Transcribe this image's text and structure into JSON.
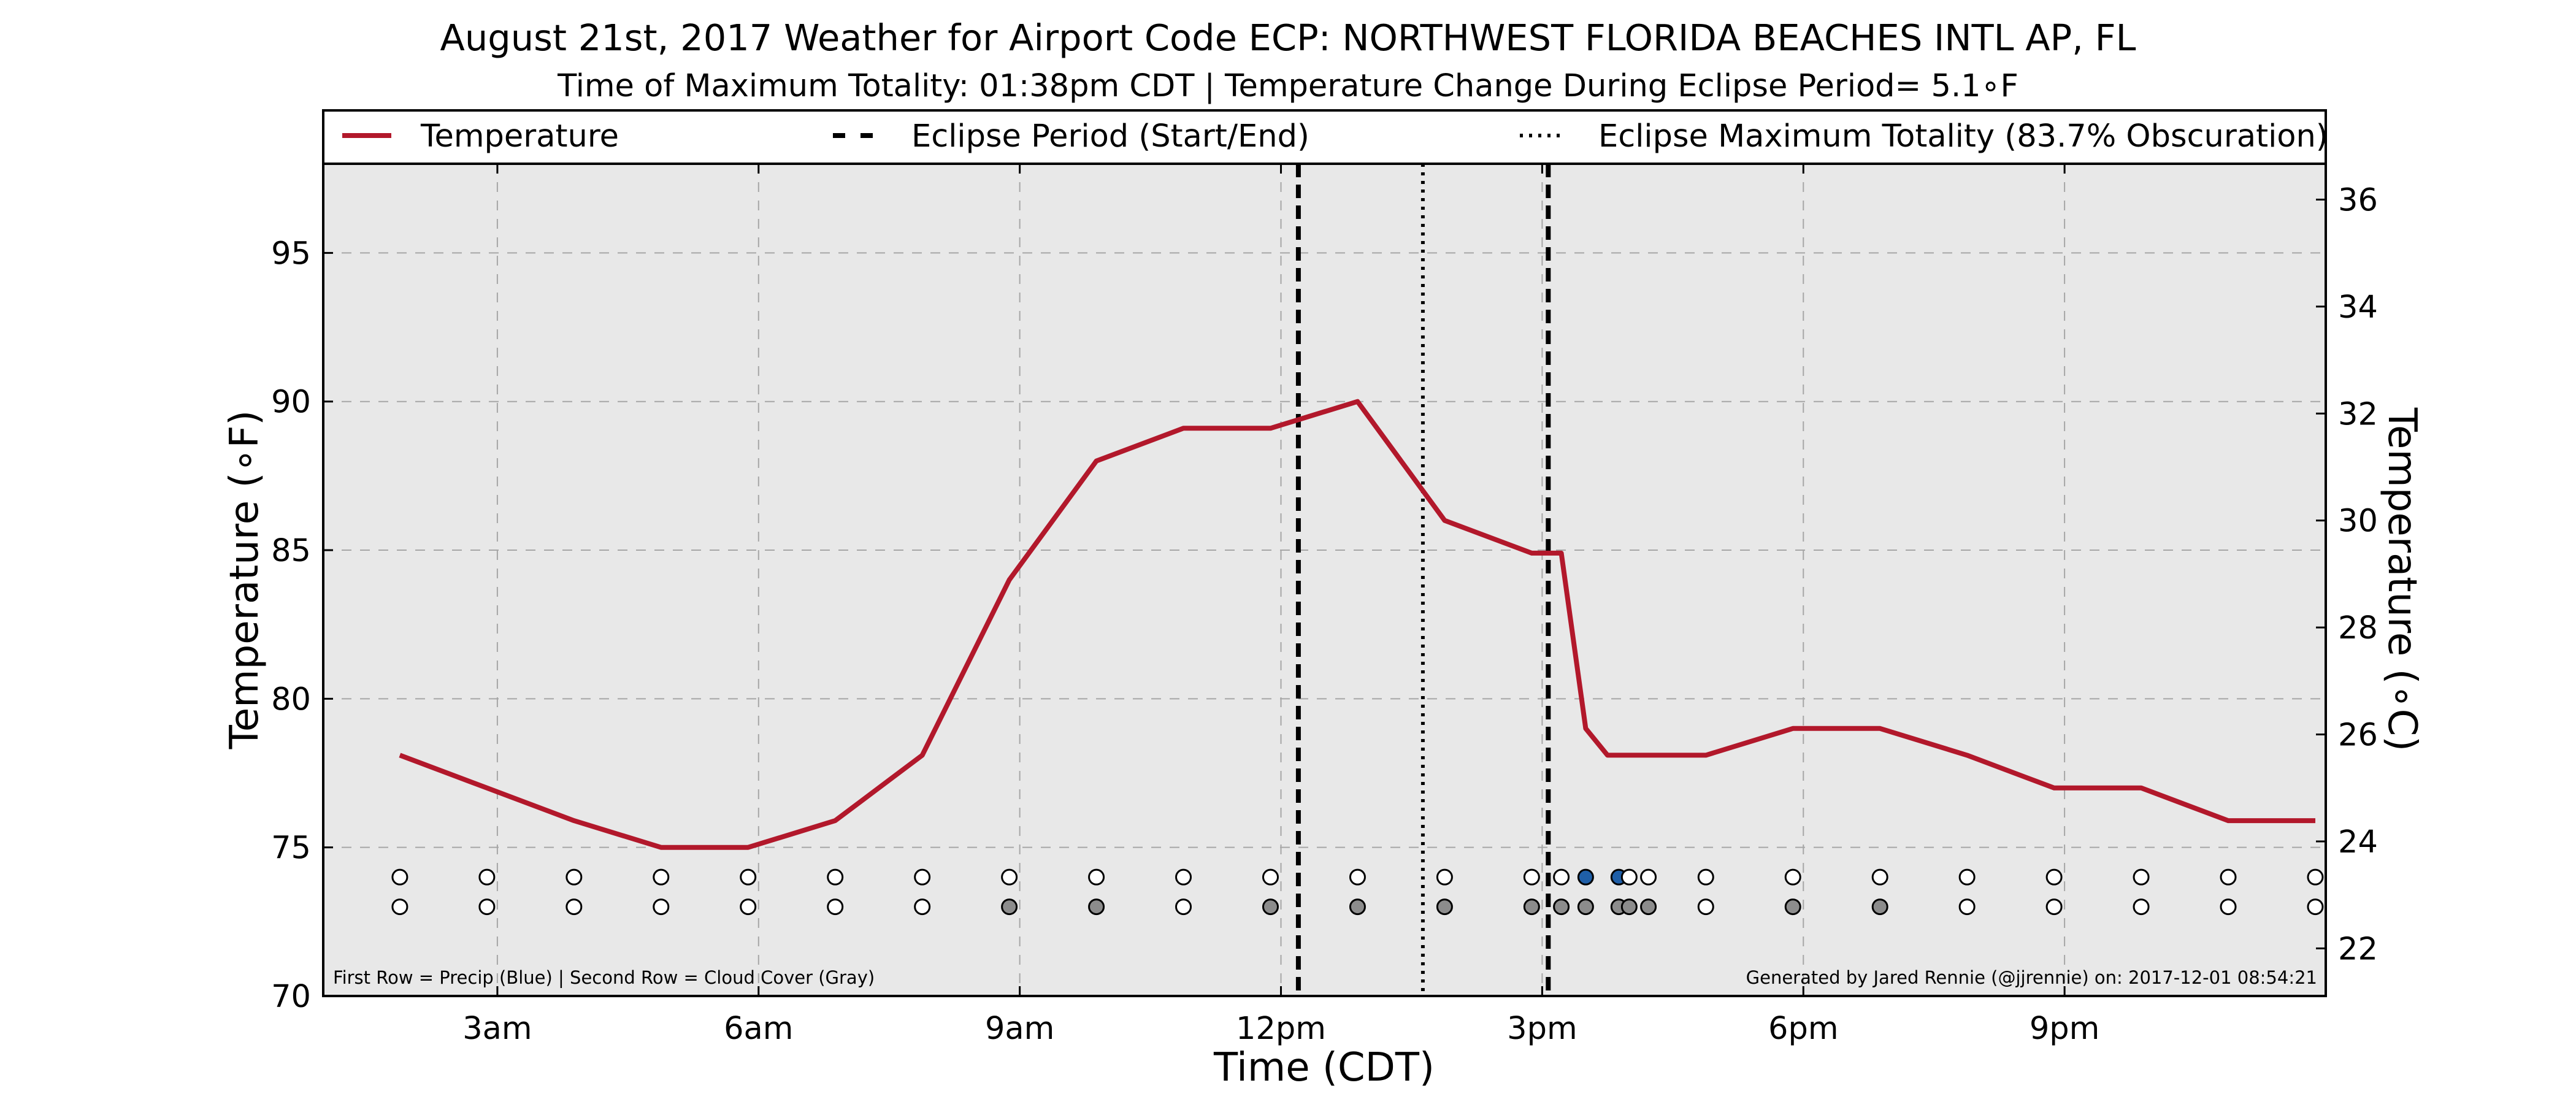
{
  "chart_data": {
    "type": "line",
    "title": "August 21st, 2017 Weather for Airport Code ECP: NORTHWEST FLORIDA BEACHES INTL AP, FL",
    "subtitle": "Time of Maximum Totality: 01:38pm CDT | Temperature Change During Eclipse Period= 5.1∘F",
    "xlabel": "Time (CDT)",
    "ylabel": "Temperature (∘F)",
    "ylabel_right": "Temperature (∘C)",
    "xlim": [
      1.0,
      24.0
    ],
    "ylim": [
      70,
      98
    ],
    "ylim_right": [
      21.11,
      36.67
    ],
    "x_ticks": [
      {
        "x": 3,
        "label": "3am"
      },
      {
        "x": 6,
        "label": "6am"
      },
      {
        "x": 9,
        "label": "9am"
      },
      {
        "x": 12,
        "label": "12pm"
      },
      {
        "x": 15,
        "label": "3pm"
      },
      {
        "x": 18,
        "label": "6pm"
      },
      {
        "x": 21,
        "label": "9pm"
      }
    ],
    "y_ticks_left": [
      70,
      75,
      80,
      85,
      90,
      95
    ],
    "y_ticks_right": [
      22,
      24,
      26,
      28,
      30,
      32,
      34,
      36
    ],
    "grid": true,
    "series": [
      {
        "name": "Temperature",
        "color": "#b2182b",
        "points": [
          [
            1.88,
            78.1
          ],
          [
            2.88,
            77.0
          ],
          [
            3.88,
            75.9
          ],
          [
            4.88,
            75.0
          ],
          [
            5.88,
            75.0
          ],
          [
            6.88,
            75.9
          ],
          [
            7.88,
            78.1
          ],
          [
            8.88,
            84.0
          ],
          [
            9.88,
            88.0
          ],
          [
            10.88,
            89.1
          ],
          [
            11.88,
            89.1
          ],
          [
            12.88,
            90.0
          ],
          [
            13.88,
            86.0
          ],
          [
            14.88,
            84.9
          ],
          [
            15.22,
            84.9
          ],
          [
            15.5,
            79.0
          ],
          [
            15.75,
            78.1
          ],
          [
            16.0,
            78.1
          ],
          [
            16.88,
            78.1
          ],
          [
            17.88,
            79.0
          ],
          [
            18.88,
            79.0
          ],
          [
            19.88,
            78.1
          ],
          [
            20.88,
            77.0
          ],
          [
            21.88,
            77.0
          ],
          [
            22.88,
            75.9
          ],
          [
            23.88,
            75.9
          ]
        ]
      }
    ],
    "eclipse_period": {
      "start": 12.2,
      "end": 15.07
    },
    "eclipse_max_totality": 13.63,
    "legend": {
      "placement": "top",
      "entries": [
        {
          "label": "Temperature",
          "style": "solid",
          "color": "#b2182b"
        },
        {
          "label": "Eclipse Period (Start/End)",
          "style": "dashed",
          "color": "#000000"
        },
        {
          "label": "Eclipse Maximum Totality (83.7% Obscuration)",
          "style": "dotted",
          "color": "#000000"
        }
      ]
    },
    "observations": {
      "precip_row_y": 74.0,
      "cloud_row_y": 73.0,
      "precip_color": "#1f5fa8",
      "cloud_color": "#8c8c8c",
      "precip": [
        {
          "x": 1.88,
          "v": 0
        },
        {
          "x": 2.88,
          "v": 0
        },
        {
          "x": 3.88,
          "v": 0
        },
        {
          "x": 4.88,
          "v": 0
        },
        {
          "x": 5.88,
          "v": 0
        },
        {
          "x": 6.88,
          "v": 0
        },
        {
          "x": 7.88,
          "v": 0
        },
        {
          "x": 8.88,
          "v": 0
        },
        {
          "x": 9.88,
          "v": 0
        },
        {
          "x": 10.88,
          "v": 0
        },
        {
          "x": 11.88,
          "v": 0
        },
        {
          "x": 12.88,
          "v": 0
        },
        {
          "x": 13.88,
          "v": 0
        },
        {
          "x": 14.88,
          "v": 0
        },
        {
          "x": 15.22,
          "v": 0
        },
        {
          "x": 15.5,
          "v": 1
        },
        {
          "x": 15.88,
          "v": 1
        },
        {
          "x": 16.0,
          "v": 0
        },
        {
          "x": 16.22,
          "v": 0
        },
        {
          "x": 16.88,
          "v": 0
        },
        {
          "x": 17.88,
          "v": 0
        },
        {
          "x": 18.88,
          "v": 0
        },
        {
          "x": 19.88,
          "v": 0
        },
        {
          "x": 20.88,
          "v": 0
        },
        {
          "x": 21.88,
          "v": 0
        },
        {
          "x": 22.88,
          "v": 0
        },
        {
          "x": 23.88,
          "v": 0
        }
      ],
      "cloud": [
        {
          "x": 1.88,
          "v": 0
        },
        {
          "x": 2.88,
          "v": 0
        },
        {
          "x": 3.88,
          "v": 0
        },
        {
          "x": 4.88,
          "v": 0
        },
        {
          "x": 5.88,
          "v": 0
        },
        {
          "x": 6.88,
          "v": 0
        },
        {
          "x": 7.88,
          "v": 0
        },
        {
          "x": 8.88,
          "v": 1
        },
        {
          "x": 9.88,
          "v": 1
        },
        {
          "x": 10.88,
          "v": 0
        },
        {
          "x": 11.88,
          "v": 1
        },
        {
          "x": 12.88,
          "v": 1
        },
        {
          "x": 13.88,
          "v": 1
        },
        {
          "x": 14.88,
          "v": 1
        },
        {
          "x": 15.22,
          "v": 1
        },
        {
          "x": 15.5,
          "v": 1
        },
        {
          "x": 15.88,
          "v": 1
        },
        {
          "x": 16.0,
          "v": 1
        },
        {
          "x": 16.22,
          "v": 1
        },
        {
          "x": 16.88,
          "v": 0
        },
        {
          "x": 17.88,
          "v": 1
        },
        {
          "x": 18.88,
          "v": 1
        },
        {
          "x": 19.88,
          "v": 0
        },
        {
          "x": 20.88,
          "v": 0
        },
        {
          "x": 21.88,
          "v": 0
        },
        {
          "x": 22.88,
          "v": 0
        },
        {
          "x": 23.88,
          "v": 0
        }
      ]
    },
    "annotations": {
      "bottom_left": "First Row = Precip (Blue) | Second Row = Cloud Cover (Gray)",
      "bottom_right": "Generated by Jared Rennie (@jjrennie) on: 2017-12-01 08:54:21"
    }
  }
}
